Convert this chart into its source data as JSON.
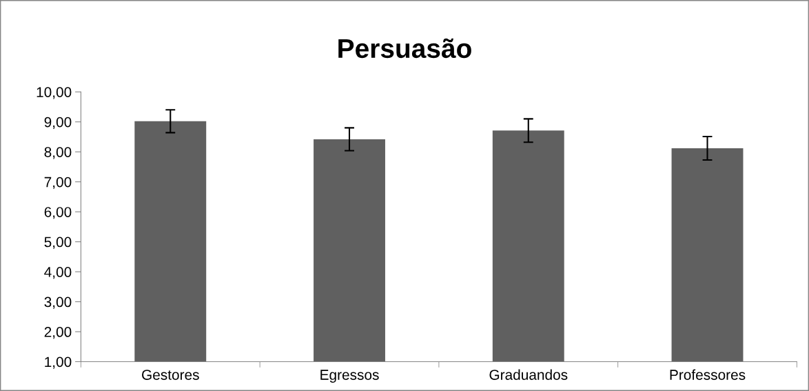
{
  "chart_data": {
    "type": "bar",
    "title": "Persuasão",
    "categories": [
      "Gestores",
      "Egressos",
      "Graduandos",
      "Professores"
    ],
    "values": [
      9.02,
      8.42,
      8.71,
      8.12
    ],
    "errors": [
      0.38,
      0.38,
      0.39,
      0.39
    ],
    "color": "#606060",
    "ylim": [
      1,
      10
    ],
    "yticks": [
      {
        "value": 1,
        "label": "1,00"
      },
      {
        "value": 2,
        "label": "2,00"
      },
      {
        "value": 3,
        "label": "3,00"
      },
      {
        "value": 4,
        "label": "4,00"
      },
      {
        "value": 5,
        "label": "5,00"
      },
      {
        "value": 6,
        "label": "6,00"
      },
      {
        "value": 7,
        "label": "7,00"
      },
      {
        "value": 8,
        "label": "8,00"
      },
      {
        "value": 9,
        "label": "9,00"
      },
      {
        "value": 10,
        "label": "10,00"
      }
    ],
    "grid": false,
    "legend": false
  }
}
